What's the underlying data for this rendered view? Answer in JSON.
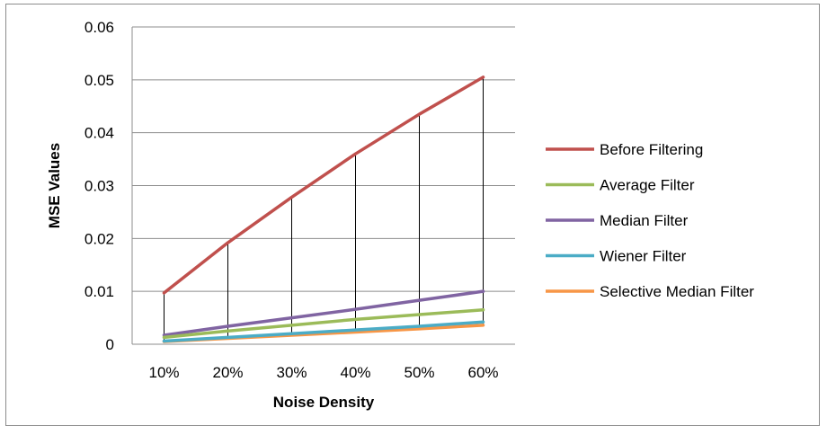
{
  "chart_data": {
    "type": "line",
    "title": "",
    "xlabel": "Noise Density",
    "ylabel": "MSE Values",
    "categories": [
      "10%",
      "20%",
      "30%",
      "40%",
      "50%",
      "60%"
    ],
    "ylim": [
      0,
      0.06
    ],
    "yticks": [
      "0",
      "0.01",
      "0.02",
      "0.03",
      "0.04",
      "0.05",
      "0.06"
    ],
    "grid": true,
    "legend_position": "right",
    "drop_lines": true,
    "series": [
      {
        "name": "Before Filtering",
        "color": "#c0504d",
        "values": [
          0.0097,
          0.0192,
          0.0278,
          0.036,
          0.0435,
          0.0505
        ]
      },
      {
        "name": "Average Filter",
        "color": "#9bbb59",
        "values": [
          0.0013,
          0.0025,
          0.0036,
          0.0047,
          0.0056,
          0.0065
        ]
      },
      {
        "name": "Median Filter",
        "color": "#8064a2",
        "values": [
          0.0017,
          0.0034,
          0.005,
          0.0066,
          0.0083,
          0.01
        ]
      },
      {
        "name": "Wiener Filter",
        "color": "#4bacc6",
        "values": [
          0.0006,
          0.0013,
          0.002,
          0.0027,
          0.0034,
          0.0042
        ]
      },
      {
        "name": "Selective Median Filter",
        "color": "#f79646",
        "values": [
          0.0005,
          0.0011,
          0.0017,
          0.0023,
          0.0029,
          0.0036
        ]
      }
    ]
  }
}
